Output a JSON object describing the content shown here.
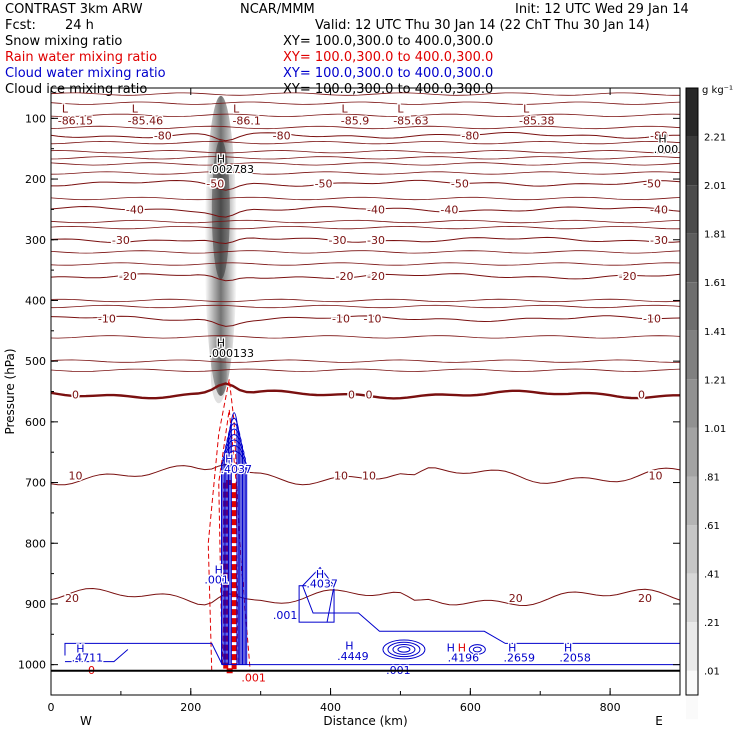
{
  "header": {
    "model": "CONTRAST  3km ARW",
    "org": "NCAR/MMM",
    "init": "Init: 12 UTC Wed 29 Jan 14",
    "fcst_label": "Fcst:",
    "fcst_value": "24 h",
    "valid": "Valid: 12 UTC Thu 30 Jan 14 (22 ChT Thu 30 Jan 14)"
  },
  "legend": [
    {
      "name": "Snow mixing ratio",
      "xy": "XY= 100.0,300.0 to 400.0,300.0",
      "color": "#000000"
    },
    {
      "name": "Rain water mixing ratio",
      "xy": "XY= 100.0,300.0 to 400.0,300.0",
      "color": "#e00000"
    },
    {
      "name": "Cloud water mixing ratio",
      "xy": "XY= 100.0,300.0 to 400.0,300.0",
      "color": "#0000cc"
    },
    {
      "name": "Cloud ice mixing ratio",
      "xy": "XY= 100.0,300.0 to 400.0,300.0",
      "color": "#000000"
    }
  ],
  "colors": {
    "temperature": "#7a1010",
    "rain": "#e00000",
    "cloud_water": "#0000cc",
    "frame": "#000000"
  },
  "chart_data": {
    "type": "cross-section contour",
    "xlabel": "Distance (km)",
    "ylabel": "Pressure (hPa)",
    "xlim": [
      0,
      900
    ],
    "ylim": [
      1050,
      50
    ],
    "x_ticks": [
      0,
      200,
      400,
      600,
      800
    ],
    "y_ticks": [
      100,
      200,
      300,
      400,
      500,
      600,
      700,
      800,
      900,
      1000
    ],
    "direction_left": "W",
    "direction_right": "E",
    "colorbar": {
      "unit": "g kg⁻¹",
      "labels": [
        "2.21",
        "2.01",
        "1.81",
        "1.61",
        "1.41",
        "1.21",
        "1.01",
        ".81",
        ".61",
        ".41",
        ".21",
        ".01"
      ],
      "values": [
        2.21,
        2.01,
        1.81,
        1.61,
        1.41,
        1.21,
        1.01,
        0.81,
        0.61,
        0.41,
        0.21,
        0.01
      ]
    },
    "temperature_contours": [
      {
        "level": -80,
        "p": 128,
        "labels": [
          {
            "x": 160,
            "text": "-80"
          },
          {
            "x": 330,
            "text": "-80"
          },
          {
            "x": 600,
            "text": "-80"
          },
          {
            "x": 870,
            "text": "-80"
          }
        ]
      },
      {
        "level": -50,
        "p": 207,
        "labels": [
          {
            "x": 235,
            "text": "-50"
          },
          {
            "x": 390,
            "text": "-50"
          },
          {
            "x": 585,
            "text": "-50"
          },
          {
            "x": 860,
            "text": "-50"
          }
        ]
      },
      {
        "level": -40,
        "p": 250,
        "labels": [
          {
            "x": 120,
            "text": "-40"
          },
          {
            "x": 465,
            "text": "-40"
          },
          {
            "x": 570,
            "text": "-40"
          },
          {
            "x": 870,
            "text": "-40"
          }
        ]
      },
      {
        "level": -30,
        "p": 300,
        "labels": [
          {
            "x": 100,
            "text": "-30"
          },
          {
            "x": 410,
            "text": "-30"
          },
          {
            "x": 465,
            "text": "-30"
          },
          {
            "x": 870,
            "text": "-30"
          }
        ]
      },
      {
        "level": -20,
        "p": 360,
        "labels": [
          {
            "x": 110,
            "text": "-20"
          },
          {
            "x": 420,
            "text": "-20"
          },
          {
            "x": 465,
            "text": "-20"
          },
          {
            "x": 825,
            "text": "-20"
          }
        ]
      },
      {
        "level": -10,
        "p": 430,
        "labels": [
          {
            "x": 80,
            "text": "-10"
          },
          {
            "x": 415,
            "text": "-10"
          },
          {
            "x": 460,
            "text": "-10"
          },
          {
            "x": 860,
            "text": "-10"
          }
        ]
      },
      {
        "level": 0,
        "p": 555,
        "bold": true,
        "labels": [
          {
            "x": 35,
            "text": "0"
          },
          {
            "x": 430,
            "text": "0"
          },
          {
            "x": 455,
            "text": "0"
          },
          {
            "x": 845,
            "text": "0"
          }
        ]
      },
      {
        "level": 10,
        "p": 688,
        "labels": [
          {
            "x": 35,
            "text": "10"
          },
          {
            "x": 415,
            "text": "10"
          },
          {
            "x": 455,
            "text": "10"
          },
          {
            "x": 865,
            "text": "10"
          }
        ]
      },
      {
        "level": 20,
        "p": 890,
        "labels": [
          {
            "x": 30,
            "text": "20"
          },
          {
            "x": 665,
            "text": "20"
          },
          {
            "x": 850,
            "text": "20"
          }
        ]
      }
    ],
    "extrema_labels": [
      {
        "x": 20,
        "p": 90,
        "text": "L",
        "color": "#7a1010"
      },
      {
        "x": 35,
        "p": 110,
        "text": "-86.15",
        "color": "#7a1010"
      },
      {
        "x": 120,
        "p": 90,
        "text": "L",
        "color": "#7a1010"
      },
      {
        "x": 135,
        "p": 110,
        "text": "-85.46",
        "color": "#7a1010"
      },
      {
        "x": 265,
        "p": 90,
        "text": "L",
        "color": "#7a1010"
      },
      {
        "x": 280,
        "p": 110,
        "text": "-86.1",
        "color": "#7a1010"
      },
      {
        "x": 420,
        "p": 90,
        "text": "L",
        "color": "#7a1010"
      },
      {
        "x": 435,
        "p": 110,
        "text": "-85.9",
        "color": "#7a1010"
      },
      {
        "x": 500,
        "p": 90,
        "text": "L",
        "color": "#7a1010"
      },
      {
        "x": 515,
        "p": 110,
        "text": "-85.63",
        "color": "#7a1010"
      },
      {
        "x": 680,
        "p": 90,
        "text": "L",
        "color": "#7a1010"
      },
      {
        "x": 695,
        "p": 110,
        "text": "-85.38",
        "color": "#7a1010"
      },
      {
        "x": 875,
        "p": 140,
        "text": "H",
        "color": "#000000"
      },
      {
        "x": 880,
        "p": 157,
        "text": ".000",
        "color": "#000000"
      },
      {
        "x": 243,
        "p": 173,
        "text": "H",
        "color": "#000000"
      },
      {
        "x": 258,
        "p": 190,
        "text": ".002783",
        "color": "#000000"
      },
      {
        "x": 243,
        "p": 476,
        "text": "H",
        "color": "#000000"
      },
      {
        "x": 258,
        "p": 493,
        "text": ".000133",
        "color": "#000000"
      },
      {
        "x": 255,
        "p": 667,
        "text": "H",
        "color": "#0000cc"
      },
      {
        "x": 265,
        "p": 684,
        "text": ".4037",
        "color": "#0000cc"
      },
      {
        "x": 240,
        "p": 850,
        "text": "H",
        "color": "#0000cc"
      },
      {
        "x": 237,
        "p": 866,
        "text": ".001",
        "color": "#0000cc"
      },
      {
        "x": 385,
        "p": 857,
        "text": "H",
        "color": "#0000cc"
      },
      {
        "x": 388,
        "p": 873,
        "text": ".4037",
        "color": "#0000cc"
      },
      {
        "x": 335,
        "p": 925,
        "text": ".001",
        "color": "#0000cc"
      },
      {
        "x": 42,
        "p": 980,
        "text": "H",
        "color": "#0000cc"
      },
      {
        "x": 52,
        "p": 995,
        "text": ".4711",
        "color": "#0000cc"
      },
      {
        "x": 427,
        "p": 975,
        "text": "H",
        "color": "#0000cc"
      },
      {
        "x": 432,
        "p": 992,
        "text": ".4449",
        "color": "#0000cc"
      },
      {
        "x": 572,
        "p": 978,
        "text": "H",
        "color": "#0000cc"
      },
      {
        "x": 588,
        "p": 978,
        "text": "H",
        "color": "#e00000"
      },
      {
        "x": 590,
        "p": 995,
        "text": ".4196",
        "color": "#0000cc"
      },
      {
        "x": 660,
        "p": 978,
        "text": "H",
        "color": "#0000cc"
      },
      {
        "x": 670,
        "p": 995,
        "text": ".2659",
        "color": "#0000cc"
      },
      {
        "x": 740,
        "p": 978,
        "text": "H",
        "color": "#0000cc"
      },
      {
        "x": 750,
        "p": 995,
        "text": ".2058",
        "color": "#0000cc"
      },
      {
        "x": 497,
        "p": 1015,
        "text": ".001",
        "color": "#0000cc"
      },
      {
        "x": 290,
        "p": 1028,
        "text": ".001",
        "color": "#e00000"
      },
      {
        "x": 58,
        "p": 1015,
        "text": "0",
        "color": "#e00000"
      }
    ]
  }
}
